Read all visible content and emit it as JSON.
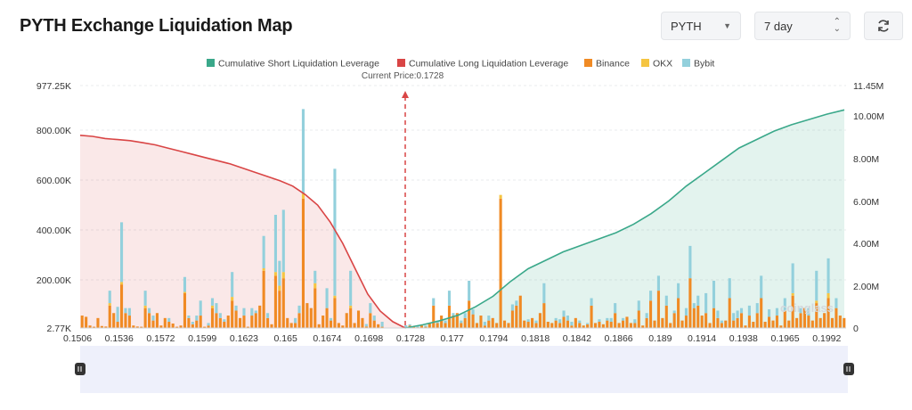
{
  "header": {
    "title": "PYTH Exchange Liquidation Map",
    "symbol_select": "PYTH",
    "range_select": "7 day",
    "refresh_icon": "refresh-icon",
    "caret_icon": "chevron-down-icon",
    "updown_icon": "up-down-chevron-icon"
  },
  "chart_data": {
    "type": "bar",
    "title": "PYTH Exchange Liquidation Map",
    "current_price_label": "Current Price:0.1728",
    "current_price": 0.1728,
    "legend": [
      {
        "name": "Cumulative Short Liquidation Leverage",
        "color": "#3aa88a"
      },
      {
        "name": "Cumulative Long Liquidation Leverage",
        "color": "#d94545"
      },
      {
        "name": "Binance",
        "color": "#f08a24"
      },
      {
        "name": "OKX",
        "color": "#f5c542"
      },
      {
        "name": "Bybit",
        "color": "#93d0dc"
      }
    ],
    "x_ticks": [
      "0.1506",
      "0.1536",
      "0.1572",
      "0.1599",
      "0.1623",
      "0.165",
      "0.1674",
      "0.1698",
      "0.1728",
      "0.177",
      "0.1794",
      "0.1818",
      "0.1842",
      "0.1866",
      "0.189",
      "0.1914",
      "0.1938",
      "0.1965",
      "0.1992"
    ],
    "y_left_ticks": [
      "977.25K",
      "800.00K",
      "600.00K",
      "400.00K",
      "200.00K",
      "2.77K"
    ],
    "y_right_ticks": [
      "11.45M",
      "10.00M",
      "8.00M",
      "6.00M",
      "4.00M",
      "2.00M",
      "0"
    ],
    "y_left_range": [
      2770,
      977250
    ],
    "y_right_range": [
      0,
      11450000
    ],
    "bars_k": [
      [
        50,
        0,
        0
      ],
      [
        45,
        0,
        0
      ],
      [
        10,
        0,
        0
      ],
      [
        5,
        0,
        0
      ],
      [
        40,
        0,
        0
      ],
      [
        8,
        0,
        0
      ],
      [
        6,
        0,
        0
      ],
      [
        90,
        10,
        50
      ],
      [
        60,
        0,
        0
      ],
      [
        25,
        0,
        60
      ],
      [
        175,
        10,
        240
      ],
      [
        60,
        0,
        20
      ],
      [
        50,
        0,
        30
      ],
      [
        10,
        0,
        0
      ],
      [
        6,
        0,
        0
      ],
      [
        5,
        0,
        0
      ],
      [
        80,
        10,
        60
      ],
      [
        60,
        0,
        20
      ],
      [
        30,
        0,
        20
      ],
      [
        60,
        0,
        0
      ],
      [
        10,
        0,
        0
      ],
      [
        40,
        0,
        0
      ],
      [
        25,
        0,
        15
      ],
      [
        18,
        0,
        0
      ],
      [
        5,
        0,
        0
      ],
      [
        10,
        0,
        0
      ],
      [
        140,
        5,
        60
      ],
      [
        40,
        0,
        10
      ],
      [
        15,
        0,
        10
      ],
      [
        30,
        0,
        20
      ],
      [
        50,
        0,
        60
      ],
      [
        5,
        0,
        0
      ],
      [
        10,
        0,
        10
      ],
      [
        80,
        10,
        30
      ],
      [
        60,
        0,
        40
      ],
      [
        40,
        0,
        20
      ],
      [
        25,
        0,
        10
      ],
      [
        50,
        0,
        0
      ],
      [
        110,
        15,
        100
      ],
      [
        70,
        0,
        20
      ],
      [
        40,
        0,
        0
      ],
      [
        50,
        0,
        30
      ],
      [
        5,
        0,
        0
      ],
      [
        50,
        0,
        30
      ],
      [
        60,
        0,
        10
      ],
      [
        90,
        0,
        0
      ],
      [
        230,
        10,
        130
      ],
      [
        40,
        0,
        20
      ],
      [
        15,
        0,
        0
      ],
      [
        210,
        15,
        230
      ],
      [
        150,
        20,
        100
      ],
      [
        200,
        25,
        250
      ],
      [
        40,
        0,
        0
      ],
      [
        20,
        0,
        0
      ],
      [
        20,
        0,
        20
      ],
      [
        60,
        0,
        30
      ],
      [
        520,
        20,
        340
      ],
      [
        100,
        0,
        0
      ],
      [
        80,
        0,
        0
      ],
      [
        160,
        20,
        50
      ],
      [
        15,
        0,
        0
      ],
      [
        50,
        0,
        0
      ],
      [
        80,
        0,
        80
      ],
      [
        30,
        0,
        10
      ],
      [
        120,
        10,
        510
      ],
      [
        20,
        0,
        0
      ],
      [
        10,
        0,
        0
      ],
      [
        60,
        0,
        0
      ],
      [
        80,
        10,
        140
      ],
      [
        20,
        0,
        0
      ],
      [
        70,
        0,
        0
      ],
      [
        40,
        0,
        0
      ],
      [
        6,
        0,
        10
      ],
      [
        60,
        0,
        40
      ],
      [
        30,
        0,
        20
      ],
      [
        15,
        0,
        0
      ],
      [
        5,
        0,
        20
      ],
      [
        0,
        0,
        0
      ],
      [
        0,
        0,
        0
      ],
      [
        0,
        0,
        0
      ],
      [
        0,
        0,
        0
      ],
      [
        2,
        0,
        0
      ],
      [
        3,
        0,
        8
      ],
      [
        10,
        0,
        5
      ],
      [
        6,
        0,
        0
      ],
      [
        3,
        0,
        5
      ],
      [
        10,
        0,
        0
      ],
      [
        5,
        0,
        5
      ],
      [
        20,
        0,
        0
      ],
      [
        90,
        0,
        30
      ],
      [
        20,
        0,
        10
      ],
      [
        50,
        0,
        0
      ],
      [
        20,
        0,
        10
      ],
      [
        90,
        0,
        60
      ],
      [
        50,
        0,
        10
      ],
      [
        60,
        0,
        0
      ],
      [
        20,
        0,
        10
      ],
      [
        40,
        0,
        20
      ],
      [
        110,
        0,
        80
      ],
      [
        55,
        0,
        20
      ],
      [
        20,
        0,
        0
      ],
      [
        50,
        0,
        0
      ],
      [
        10,
        0,
        15
      ],
      [
        30,
        0,
        20
      ],
      [
        40,
        0,
        0
      ],
      [
        20,
        0,
        0
      ],
      [
        520,
        15,
        0
      ],
      [
        30,
        0,
        0
      ],
      [
        20,
        0,
        0
      ],
      [
        70,
        0,
        25
      ],
      [
        90,
        0,
        20
      ],
      [
        130,
        0,
        0
      ],
      [
        30,
        0,
        0
      ],
      [
        25,
        0,
        10
      ],
      [
        40,
        0,
        0
      ],
      [
        20,
        0,
        10
      ],
      [
        60,
        0,
        0
      ],
      [
        100,
        0,
        80
      ],
      [
        25,
        0,
        0
      ],
      [
        20,
        0,
        0
      ],
      [
        30,
        0,
        10
      ],
      [
        20,
        0,
        15
      ],
      [
        45,
        0,
        25
      ],
      [
        30,
        0,
        20
      ],
      [
        10,
        0,
        15
      ],
      [
        40,
        0,
        0
      ],
      [
        20,
        0,
        10
      ],
      [
        10,
        0,
        0
      ],
      [
        15,
        0,
        5
      ],
      [
        90,
        0,
        30
      ],
      [
        20,
        0,
        0
      ],
      [
        25,
        0,
        10
      ],
      [
        15,
        0,
        0
      ],
      [
        30,
        0,
        10
      ],
      [
        25,
        0,
        15
      ],
      [
        60,
        0,
        40
      ],
      [
        20,
        0,
        0
      ],
      [
        30,
        0,
        10
      ],
      [
        45,
        0,
        0
      ],
      [
        20,
        0,
        0
      ],
      [
        20,
        0,
        15
      ],
      [
        70,
        0,
        40
      ],
      [
        10,
        0,
        0
      ],
      [
        40,
        0,
        20
      ],
      [
        110,
        0,
        40
      ],
      [
        30,
        0,
        0
      ],
      [
        150,
        0,
        60
      ],
      [
        40,
        0,
        0
      ],
      [
        90,
        0,
        40
      ],
      [
        20,
        0,
        0
      ],
      [
        60,
        0,
        10
      ],
      [
        120,
        0,
        60
      ],
      [
        30,
        0,
        0
      ],
      [
        50,
        0,
        30
      ],
      [
        200,
        0,
        130
      ],
      [
        80,
        0,
        20
      ],
      [
        90,
        0,
        40
      ],
      [
        50,
        0,
        0
      ],
      [
        60,
        0,
        80
      ],
      [
        20,
        0,
        0
      ],
      [
        80,
        0,
        110
      ],
      [
        40,
        0,
        30
      ],
      [
        20,
        0,
        10
      ],
      [
        30,
        0,
        0
      ],
      [
        120,
        0,
        80
      ],
      [
        30,
        0,
        30
      ],
      [
        40,
        0,
        30
      ],
      [
        60,
        0,
        20
      ],
      [
        10,
        0,
        0
      ],
      [
        50,
        0,
        40
      ],
      [
        25,
        0,
        0
      ],
      [
        60,
        0,
        40
      ],
      [
        120,
        0,
        90
      ],
      [
        25,
        0,
        0
      ],
      [
        45,
        0,
        30
      ],
      [
        30,
        0,
        0
      ],
      [
        50,
        0,
        30
      ],
      [
        10,
        0,
        0
      ],
      [
        70,
        0,
        50
      ],
      [
        30,
        0,
        0
      ],
      [
        130,
        10,
        120
      ],
      [
        40,
        0,
        0
      ],
      [
        60,
        0,
        20
      ],
      [
        80,
        0,
        0
      ],
      [
        50,
        0,
        30
      ],
      [
        30,
        0,
        0
      ],
      [
        100,
        10,
        120
      ],
      [
        40,
        0,
        0
      ],
      [
        60,
        0,
        0
      ],
      [
        120,
        20,
        140
      ],
      [
        40,
        0,
        0
      ],
      [
        80,
        0,
        40
      ],
      [
        50,
        0,
        0
      ],
      [
        40,
        0,
        0
      ]
    ],
    "long_cum_m": [
      9.1,
      9.05,
      8.95,
      8.9,
      8.85,
      8.75,
      8.65,
      8.5,
      8.35,
      8.2,
      8.05,
      7.9,
      7.75,
      7.55,
      7.35,
      7.15,
      6.95,
      6.7,
      6.3,
      5.8,
      5.0,
      4.0,
      2.8,
      1.6,
      0.8,
      0.3,
      0.0
    ],
    "short_cum_m": [
      0.0,
      0.15,
      0.35,
      0.6,
      1.0,
      1.5,
      2.2,
      2.8,
      3.2,
      3.6,
      3.9,
      4.2,
      4.5,
      4.9,
      5.4,
      6.0,
      6.7,
      7.3,
      7.9,
      8.5,
      8.9,
      9.3,
      9.6,
      9.85,
      10.1,
      10.3
    ]
  },
  "watermark": "coinglass"
}
